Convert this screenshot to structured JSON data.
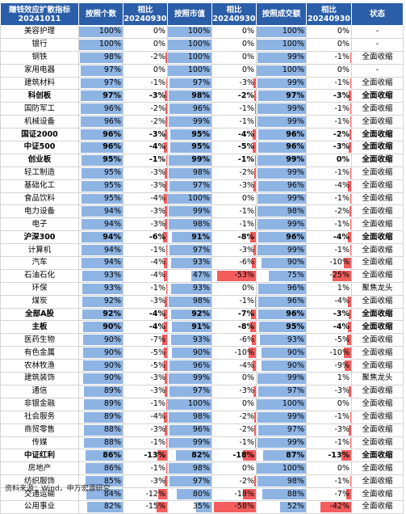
{
  "headers": [
    "赚钱效应扩散指标\n20241011",
    "按照个数",
    "相比\n20240930",
    "按照市值",
    "相比\n20240930",
    "按照成交额",
    "相比\n20240930",
    "状态"
  ],
  "rows": [
    {
      "name": "美容护理",
      "bold": false,
      "c1": "100%",
      "c2": "0%",
      "c3": "100%",
      "c4": "0%",
      "c5": "100%",
      "c6": "0%",
      "status": "-"
    },
    {
      "name": "银行",
      "bold": false,
      "c1": "100%",
      "c2": "0%",
      "c3": "100%",
      "c4": "0%",
      "c5": "100%",
      "c6": "0%",
      "status": "-"
    },
    {
      "name": "钢铁",
      "bold": false,
      "c1": "98%",
      "c2": "-2%",
      "c3": "100%",
      "c4": "0%",
      "c5": "99%",
      "c6": "-1%",
      "status": "全面收缩"
    },
    {
      "name": "家用电器",
      "bold": false,
      "c1": "97%",
      "c2": "0%",
      "c3": "100%",
      "c4": "0%",
      "c5": "100%",
      "c6": "0%",
      "status": "-"
    },
    {
      "name": "建筑材料",
      "bold": false,
      "c1": "97%",
      "c2": "-1%",
      "c3": "97%",
      "c4": "-3%",
      "c5": "99%",
      "c6": "-1%",
      "status": "全面收缩"
    },
    {
      "name": "科创板",
      "bold": true,
      "c1": "97%",
      "c2": "-3%",
      "c3": "98%",
      "c4": "-2%",
      "c5": "97%",
      "c6": "-3%",
      "status": "全面收缩"
    },
    {
      "name": "国防军工",
      "bold": false,
      "c1": "96%",
      "c2": "-2%",
      "c3": "96%",
      "c4": "-1%",
      "c5": "99%",
      "c6": "-1%",
      "status": "全面收缩"
    },
    {
      "name": "机械设备",
      "bold": false,
      "c1": "96%",
      "c2": "-2%",
      "c3": "99%",
      "c4": "-1%",
      "c5": "99%",
      "c6": "-1%",
      "status": "全面收缩"
    },
    {
      "name": "国证2000",
      "bold": true,
      "c1": "96%",
      "c2": "-3%",
      "c3": "95%",
      "c4": "-4%",
      "c5": "96%",
      "c6": "-2%",
      "status": "全面收缩"
    },
    {
      "name": "中证500",
      "bold": true,
      "c1": "96%",
      "c2": "-4%",
      "c3": "95%",
      "c4": "-5%",
      "c5": "96%",
      "c6": "-3%",
      "status": "全面收缩"
    },
    {
      "name": "创业板",
      "bold": true,
      "c1": "95%",
      "c2": "-1%",
      "c3": "99%",
      "c4": "-1%",
      "c5": "99%",
      "c6": "0%",
      "status": "全面收缩"
    },
    {
      "name": "轻工制造",
      "bold": false,
      "c1": "95%",
      "c2": "-3%",
      "c3": "98%",
      "c4": "-2%",
      "c5": "99%",
      "c6": "-1%",
      "status": "全面收缩"
    },
    {
      "name": "基础化工",
      "bold": false,
      "c1": "95%",
      "c2": "-3%",
      "c3": "97%",
      "c4": "-3%",
      "c5": "96%",
      "c6": "-4%",
      "status": "全面收缩"
    },
    {
      "name": "食品饮料",
      "bold": false,
      "c1": "95%",
      "c2": "-4%",
      "c3": "100%",
      "c4": "0%",
      "c5": "99%",
      "c6": "-1%",
      "status": "全面收缩"
    },
    {
      "name": "电力设备",
      "bold": false,
      "c1": "94%",
      "c2": "-3%",
      "c3": "99%",
      "c4": "-1%",
      "c5": "98%",
      "c6": "-2%",
      "status": "全面收缩"
    },
    {
      "name": "电子",
      "bold": false,
      "c1": "94%",
      "c2": "-3%",
      "c3": "98%",
      "c4": "-1%",
      "c5": "99%",
      "c6": "-1%",
      "status": "全面收缩"
    },
    {
      "name": "沪深300",
      "bold": true,
      "c1": "94%",
      "c2": "-6%",
      "c3": "91%",
      "c4": "-8%",
      "c5": "96%",
      "c6": "-4%",
      "status": "全面收缩"
    },
    {
      "name": "计算机",
      "bold": false,
      "c1": "94%",
      "c2": "-1%",
      "c3": "97%",
      "c4": "-3%",
      "c5": "99%",
      "c6": "-1%",
      "status": "全面收缩"
    },
    {
      "name": "汽车",
      "bold": false,
      "c1": "94%",
      "c2": "-4%",
      "c3": "93%",
      "c4": "-6%",
      "c5": "90%",
      "c6": "-10%",
      "status": "全面收缩"
    },
    {
      "name": "石油石化",
      "bold": false,
      "c1": "93%",
      "c2": "-4%",
      "c3": "47%",
      "c4": "-53%",
      "c5": "75%",
      "c6": "-25%",
      "status": "全面收缩"
    },
    {
      "name": "环保",
      "bold": false,
      "c1": "93%",
      "c2": "-1%",
      "c3": "93%",
      "c4": "0%",
      "c5": "96%",
      "c6": "1%",
      "status": "聚焦龙头"
    },
    {
      "name": "煤炭",
      "bold": false,
      "c1": "92%",
      "c2": "-3%",
      "c3": "98%",
      "c4": "-1%",
      "c5": "96%",
      "c6": "-4%",
      "status": "全面收缩"
    },
    {
      "name": "全部A股",
      "bold": true,
      "c1": "92%",
      "c2": "-4%",
      "c3": "92%",
      "c4": "-7%",
      "c5": "96%",
      "c6": "-3%",
      "status": "全面收缩"
    },
    {
      "name": "主板",
      "bold": true,
      "c1": "90%",
      "c2": "-4%",
      "c3": "91%",
      "c4": "-8%",
      "c5": "95%",
      "c6": "-4%",
      "status": "全面收缩"
    },
    {
      "name": "医药生物",
      "bold": false,
      "c1": "90%",
      "c2": "-7%",
      "c3": "93%",
      "c4": "-6%",
      "c5": "93%",
      "c6": "-5%",
      "status": "全面收缩"
    },
    {
      "name": "有色金属",
      "bold": false,
      "c1": "90%",
      "c2": "-5%",
      "c3": "90%",
      "c4": "-10%",
      "c5": "90%",
      "c6": "-10%",
      "status": "全面收缩"
    },
    {
      "name": "农林牧渔",
      "bold": false,
      "c1": "90%",
      "c2": "-5%",
      "c3": "96%",
      "c4": "-4%",
      "c5": "90%",
      "c6": "-9%",
      "status": "全面收缩"
    },
    {
      "name": "建筑装饰",
      "bold": false,
      "c1": "90%",
      "c2": "-3%",
      "c3": "99%",
      "c4": "0%",
      "c5": "99%",
      "c6": "1%",
      "status": "聚焦龙头"
    },
    {
      "name": "通信",
      "bold": false,
      "c1": "89%",
      "c2": "-3%",
      "c3": "97%",
      "c4": "-3%",
      "c5": "97%",
      "c6": "-3%",
      "status": "全面收缩"
    },
    {
      "name": "非银金融",
      "bold": false,
      "c1": "89%",
      "c2": "-1%",
      "c3": "100%",
      "c4": "0%",
      "c5": "100%",
      "c6": "0%",
      "status": "全面收缩"
    },
    {
      "name": "社会服务",
      "bold": false,
      "c1": "89%",
      "c2": "-4%",
      "c3": "98%",
      "c4": "-2%",
      "c5": "99%",
      "c6": "-1%",
      "status": "全面收缩"
    },
    {
      "name": "商贸零售",
      "bold": false,
      "c1": "88%",
      "c2": "-3%",
      "c3": "96%",
      "c4": "-2%",
      "c5": "97%",
      "c6": "-3%",
      "status": "全面收缩"
    },
    {
      "name": "传媒",
      "bold": false,
      "c1": "88%",
      "c2": "-1%",
      "c3": "99%",
      "c4": "-1%",
      "c5": "99%",
      "c6": "-1%",
      "status": "全面收缩"
    },
    {
      "name": "中证红利",
      "bold": true,
      "c1": "86%",
      "c2": "-13%",
      "c3": "82%",
      "c4": "-18%",
      "c5": "87%",
      "c6": "-13%",
      "status": "全面收缩"
    },
    {
      "name": "房地产",
      "bold": false,
      "c1": "86%",
      "c2": "-1%",
      "c3": "98%",
      "c4": "0%",
      "c5": "100%",
      "c6": "0%",
      "status": "全面收缩"
    },
    {
      "name": "纺织服饰",
      "bold": false,
      "c1": "85%",
      "c2": "-3%",
      "c3": "97%",
      "c4": "-2%",
      "c5": "98%",
      "c6": "-1%",
      "status": "全面收缩"
    },
    {
      "name": "交通运输",
      "bold": false,
      "c1": "84%",
      "c2": "-12%",
      "c3": "80%",
      "c4": "-18%",
      "c5": "88%",
      "c6": "-7%",
      "status": "全面收缩"
    },
    {
      "name": "公用事业",
      "bold": false,
      "c1": "82%",
      "c2": "-15%",
      "c3": "35%",
      "c4": "-58%",
      "c5": "52%",
      "c6": "-42%",
      "status": "全面收缩"
    }
  ],
  "footer": "资料来源：Wind，申万宏源研究"
}
